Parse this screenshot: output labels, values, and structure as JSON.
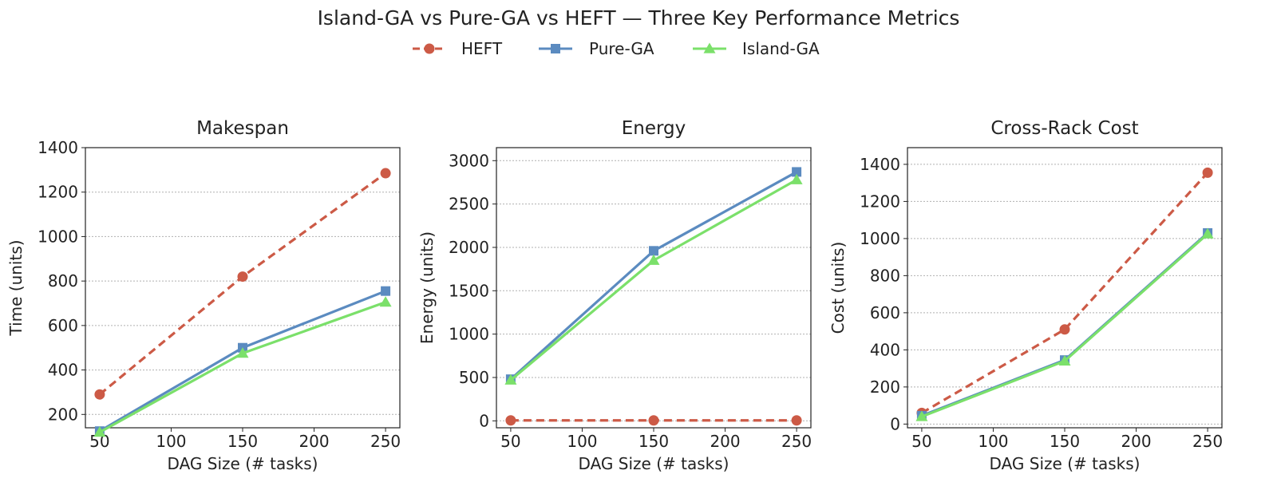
{
  "figure": {
    "title": "Island-GA vs Pure-GA vs HEFT — Three Key Performance Metrics"
  },
  "legend": {
    "items": [
      {
        "label": "HEFT",
        "color": "#cc5a46",
        "marker": "circle",
        "dashed": true
      },
      {
        "label": "Pure-GA",
        "color": "#5b8bc0",
        "marker": "square",
        "dashed": false
      },
      {
        "label": "Island-GA",
        "color": "#7be06a",
        "marker": "triangle",
        "dashed": false
      }
    ]
  },
  "chart_data": [
    {
      "type": "line",
      "title": "Makespan",
      "xlabel": "DAG Size (# tasks)",
      "ylabel": "Time (units)",
      "x": [
        50,
        150,
        250
      ],
      "xlim": [
        40,
        260
      ],
      "xticks": [
        50,
        100,
        150,
        200,
        250
      ],
      "ylim": [
        140,
        1400
      ],
      "yticks": [
        200,
        400,
        600,
        800,
        1000,
        1200,
        1400
      ],
      "grid": true,
      "series": [
        {
          "name": "HEFT",
          "values": [
            290,
            820,
            1285
          ]
        },
        {
          "name": "Pure-GA",
          "values": [
            125,
            500,
            755
          ]
        },
        {
          "name": "Island-GA",
          "values": [
            120,
            475,
            705
          ]
        }
      ]
    },
    {
      "type": "line",
      "title": "Energy",
      "xlabel": "DAG Size (# tasks)",
      "ylabel": "Energy (units)",
      "x": [
        50,
        150,
        250
      ],
      "xlim": [
        40,
        260
      ],
      "xticks": [
        50,
        100,
        150,
        200,
        250
      ],
      "ylim": [
        -80,
        3150
      ],
      "yticks": [
        0,
        500,
        1000,
        1500,
        2000,
        2500,
        3000
      ],
      "grid": true,
      "series": [
        {
          "name": "HEFT",
          "values": [
            5,
            5,
            5
          ]
        },
        {
          "name": "Pure-GA",
          "values": [
            480,
            1960,
            2870
          ]
        },
        {
          "name": "Island-GA",
          "values": [
            470,
            1850,
            2780
          ]
        }
      ]
    },
    {
      "type": "line",
      "title": "Cross-Rack Cost",
      "xlabel": "DAG Size (# tasks)",
      "ylabel": "Cost (units)",
      "x": [
        50,
        150,
        250
      ],
      "xlim": [
        40,
        260
      ],
      "xticks": [
        50,
        100,
        150,
        200,
        250
      ],
      "ylim": [
        -20,
        1490
      ],
      "yticks": [
        0,
        200,
        400,
        600,
        800,
        1000,
        1200,
        1400
      ],
      "grid": true,
      "series": [
        {
          "name": "HEFT",
          "values": [
            60,
            510,
            1355
          ]
        },
        {
          "name": "Pure-GA",
          "values": [
            45,
            345,
            1030
          ]
        },
        {
          "name": "Island-GA",
          "values": [
            40,
            340,
            1025
          ]
        }
      ]
    }
  ]
}
